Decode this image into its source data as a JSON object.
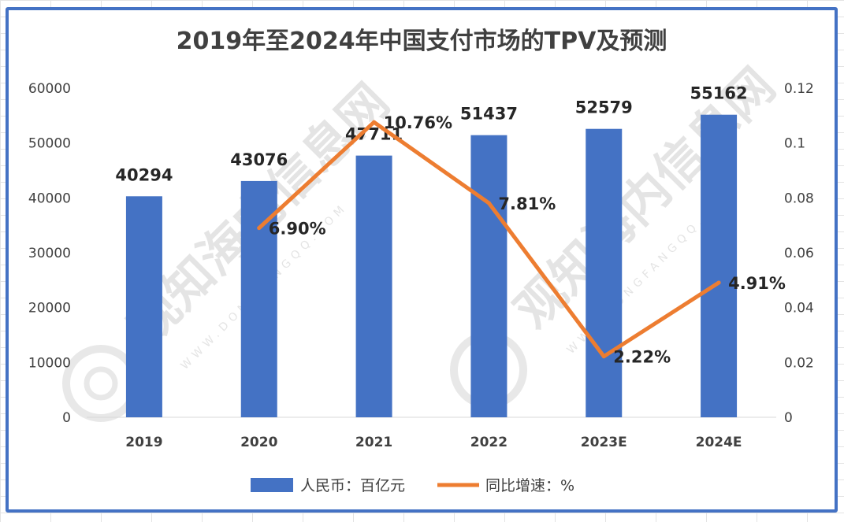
{
  "chart_data": {
    "type": "bar+line",
    "title": "2019年至2024年中国支付市场的TPV及预测",
    "categories": [
      "2019",
      "2020",
      "2021",
      "2022",
      "2023E",
      "2024E"
    ],
    "series": [
      {
        "name": "人民币：百亿元",
        "type": "bar",
        "axis": "left",
        "values": [
          40294,
          43076,
          47711,
          51437,
          52579,
          55162
        ],
        "labels": [
          "40294",
          "43076",
          "47711",
          "51437",
          "52579",
          "55162"
        ],
        "color": "#4472c4"
      },
      {
        "name": "同比增速：%",
        "type": "line",
        "axis": "right",
        "values": [
          null,
          0.069,
          0.1076,
          0.0781,
          0.0222,
          0.0491
        ],
        "labels": [
          "",
          "6.90%",
          "10.76%",
          "7.81%",
          "2.22%",
          "4.91%"
        ],
        "color": "#ed7d31"
      }
    ],
    "y_left": {
      "range": [
        0,
        60000
      ],
      "ticks": [
        "0",
        "10000",
        "20000",
        "30000",
        "40000",
        "50000",
        "60000"
      ]
    },
    "y_right": {
      "range": [
        0,
        0.12
      ],
      "ticks": [
        "0",
        "0.02",
        "0.04",
        "0.06",
        "0.08",
        "0.1",
        "0.12"
      ]
    },
    "grid": false,
    "legend_position": "bottom"
  },
  "watermark": {
    "brand_text": "观知海内信息网",
    "url_text": "WWW.DONGFANGQQ.COM"
  },
  "colors": {
    "frame_border": "#4472c4",
    "bar": "#4472c4",
    "line": "#ed7d31",
    "text": "#404040"
  }
}
